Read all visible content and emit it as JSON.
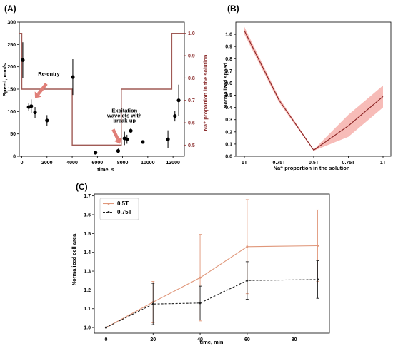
{
  "chart_data": [
    {
      "panel_label": "(A)",
      "type": "scatter",
      "xlabel": "time, s",
      "ylabel": "Speed, mm/s",
      "y2label": "Na⁺ proportion in the solution",
      "xlim": [
        -200,
        12900
      ],
      "ylim": [
        0,
        300
      ],
      "y2lim": [
        0.45,
        1.05
      ],
      "x_ticks": [
        0,
        2000,
        4000,
        6000,
        8000,
        10000,
        12000
      ],
      "x_tick_labels": [
        "0",
        "2000",
        "4000",
        "6000",
        "8000",
        "10000",
        "12000"
      ],
      "y_ticks": [
        0,
        50,
        100,
        150,
        200,
        250,
        300
      ],
      "y2_ticks": [
        0.5,
        0.6,
        0.7,
        0.8,
        0.9,
        1.0
      ],
      "points": [
        {
          "x": 80,
          "y": 215,
          "err": 40
        },
        {
          "x": 550,
          "y": 110,
          "err": 8
        },
        {
          "x": 750,
          "y": 112,
          "err": 15
        },
        {
          "x": 1050,
          "y": 98,
          "err": 12
        },
        {
          "x": 2000,
          "y": 80,
          "err": 12
        },
        {
          "x": 4050,
          "y": 177,
          "err": 40
        },
        {
          "x": 5850,
          "y": 8,
          "err": 4
        },
        {
          "x": 7650,
          "y": 12,
          "err": 5
        },
        {
          "x": 8150,
          "y": 40,
          "err": 15
        },
        {
          "x": 8350,
          "y": 38,
          "err": 10
        },
        {
          "x": 8650,
          "y": 57,
          "err": 6
        },
        {
          "x": 9600,
          "y": 32,
          "err": 4
        },
        {
          "x": 11600,
          "y": 38,
          "err": 20
        },
        {
          "x": 12150,
          "y": 90,
          "err": 12
        },
        {
          "x": 12450,
          "y": 125,
          "err": 35
        }
      ],
      "step_series": {
        "x": [
          -200,
          0,
          0,
          4000,
          4000,
          7900,
          7900,
          11900,
          11900,
          12900
        ],
        "y": [
          1.0,
          1.0,
          0.75,
          0.75,
          0.5,
          0.5,
          0.75,
          0.75,
          1.0,
          1.0
        ]
      },
      "annotations": [
        {
          "text": "Re-entry",
          "x": 2150,
          "y": 180
        },
        {
          "text": "Excitation",
          "x": 8150,
          "y": 98
        },
        {
          "text": "wavelets with",
          "x": 8150,
          "y": 87
        },
        {
          "text": "break-up",
          "x": 8150,
          "y": 76
        }
      ],
      "colors": {
        "points": "#000000",
        "step": "#a05a55",
        "arrow": "#e07f78",
        "right_axis": "#8b2e2e"
      }
    },
    {
      "panel_label": "(B)",
      "type": "line",
      "xlabel": "Na⁺ proportion in the solution",
      "ylabel": "Normalized speed",
      "x": [
        0,
        1,
        2,
        3,
        4
      ],
      "x_tick_labels": [
        "1T",
        "0.75T",
        "0.5T",
        "0.75T",
        "1T"
      ],
      "ylim": [
        0.0,
        1.1
      ],
      "y_ticks": [
        0.0,
        0.1,
        0.2,
        0.3,
        0.4,
        0.5,
        0.6,
        0.7,
        0.8,
        0.9,
        1.0
      ],
      "values": [
        1.03,
        0.46,
        0.05,
        0.25,
        0.49
      ],
      "band_lower": [
        1.0,
        0.44,
        0.045,
        0.16,
        0.4
      ],
      "band_upper": [
        1.06,
        0.48,
        0.055,
        0.34,
        0.58
      ],
      "colors": {
        "line": "#8b2323",
        "band": "#f4a6a0"
      }
    },
    {
      "panel_label": "(C)",
      "type": "line",
      "xlabel": "time, min",
      "ylabel": "Normalized cell area",
      "xlim": [
        -5,
        95
      ],
      "ylim": [
        0.97,
        1.71
      ],
      "x_ticks": [
        0,
        20,
        40,
        60,
        80
      ],
      "y_ticks": [
        1.0,
        1.1,
        1.2,
        1.3,
        1.4,
        1.5,
        1.6,
        1.7
      ],
      "x": [
        0,
        20,
        40,
        60,
        90
      ],
      "series": [
        {
          "name": "0.5T",
          "values": [
            1.0,
            1.135,
            1.265,
            1.43,
            1.435
          ],
          "err": [
            0.0,
            0.11,
            0.23,
            0.25,
            0.19
          ],
          "color": "#e0977a"
        },
        {
          "name": "0.75T",
          "values": [
            1.0,
            1.125,
            1.13,
            1.25,
            1.255
          ],
          "err": [
            0.0,
            0.11,
            0.09,
            0.1,
            0.1
          ],
          "color": "#222222"
        }
      ]
    }
  ]
}
